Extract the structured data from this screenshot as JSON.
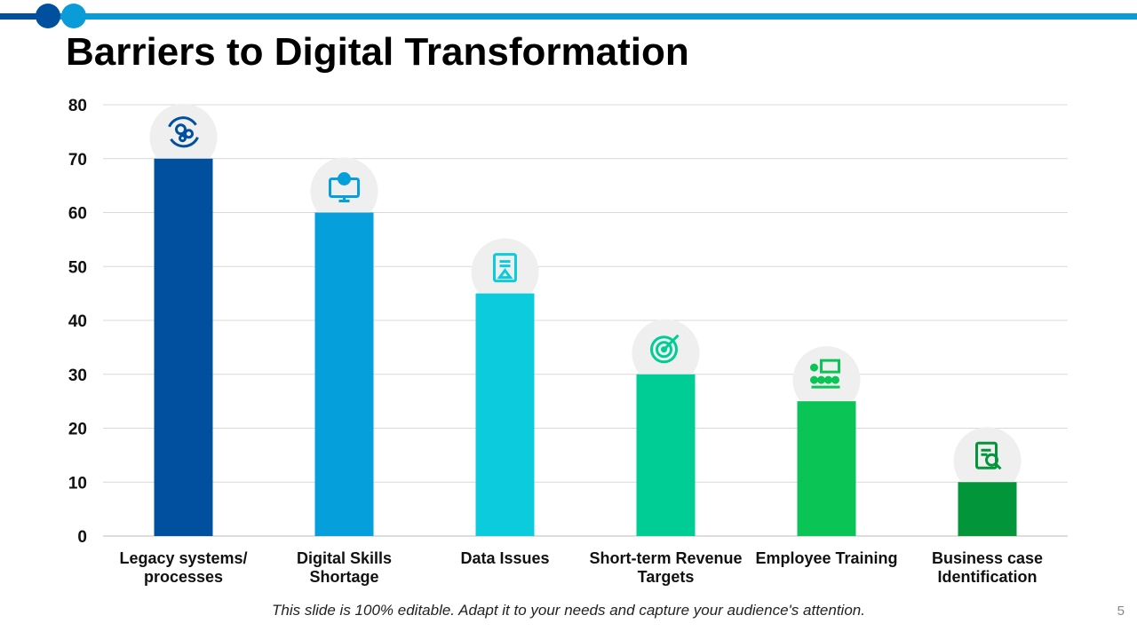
{
  "title": "Barriers to Digital Transformation",
  "footer": "This slide is 100% editable. Adapt it to your needs and capture your audience's attention.",
  "page_number": "5",
  "colors": {
    "accent_dark": "#0050A0",
    "accent_light": "#0A9CD8"
  },
  "chart_data": {
    "type": "bar",
    "categories": [
      [
        "Legacy systems/",
        "processes"
      ],
      [
        "Digital Skills",
        "Shortage"
      ],
      [
        "Data Issues"
      ],
      [
        "Short-term Revenue",
        "Targets"
      ],
      [
        "Employee Training"
      ],
      [
        "Business case",
        "Identification"
      ]
    ],
    "values": [
      70,
      60,
      45,
      30,
      25,
      10
    ],
    "colors": [
      "#0050A0",
      "#059FDB",
      "#0BCBDC",
      "#00CC96",
      "#0AC456",
      "#03953A"
    ],
    "icons": [
      "gears-refresh-icon",
      "monitor-gear-icon",
      "clipboard-warning-icon",
      "target-arrow-icon",
      "presentation-audience-icon",
      "document-search-icon"
    ],
    "ylim": [
      0,
      80
    ],
    "yticks": [
      0,
      10,
      20,
      30,
      40,
      50,
      60,
      70,
      80
    ],
    "grid": true,
    "legend": "none"
  }
}
